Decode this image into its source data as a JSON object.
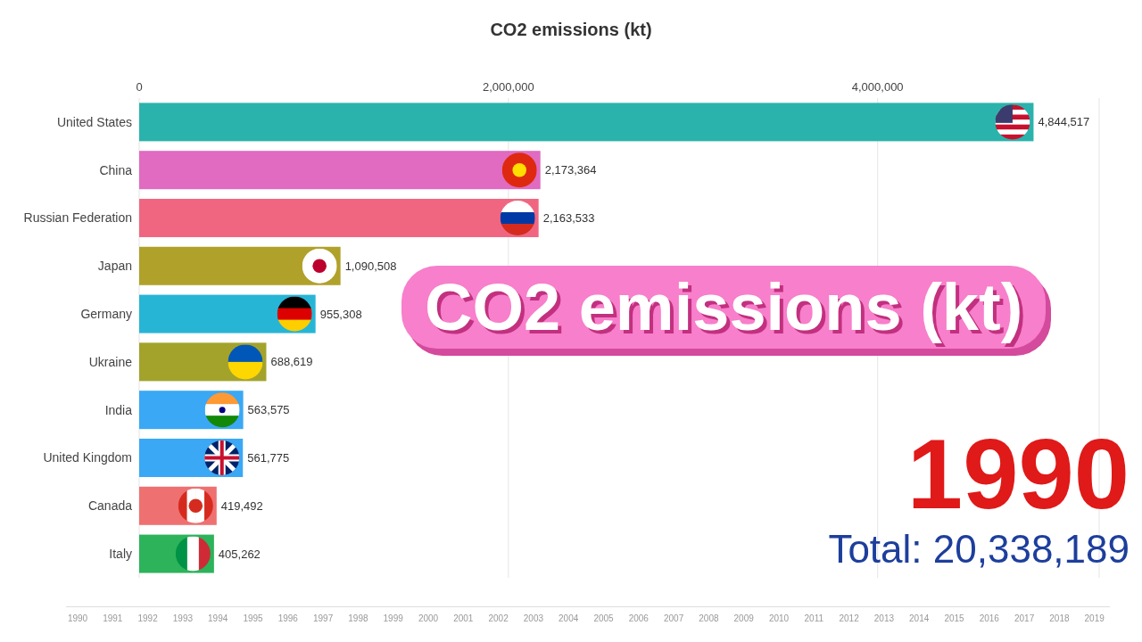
{
  "chart_data": {
    "type": "bar",
    "orientation": "horizontal",
    "title": "CO2 emissions (kt)",
    "categories": [
      "United States",
      "China",
      "Russian Federation",
      "Japan",
      "Germany",
      "Ukraine",
      "India",
      "United Kingdom",
      "Canada",
      "Italy"
    ],
    "values": [
      4844517,
      2173364,
      2163533,
      1090508,
      955308,
      688619,
      563575,
      561775,
      419492,
      405262
    ],
    "colors": [
      "#2ab3ac",
      "#e06bc0",
      "#f06680",
      "#b0a12a",
      "#27b5d6",
      "#a3a32c",
      "#3aa8f4",
      "#3aa8f4",
      "#ef7070",
      "#2db35a"
    ],
    "xlim": [
      0,
      5200000
    ],
    "xticks": [
      {
        "value": 0,
        "label": "0"
      },
      {
        "value": 2000000,
        "label": "2,000,000"
      },
      {
        "value": 4000000,
        "label": "4,000,000"
      }
    ],
    "value_labels": [
      "4,844,517",
      "2,173,364",
      "2,163,533",
      "1,090,508",
      "955,308",
      "688,619",
      "563,575",
      "561,775",
      "419,492",
      "405,262"
    ],
    "grid": "x",
    "annotations": [
      "CO2 emissions (kt)",
      "1990",
      "Total: 20,338,189",
      "1990",
      "1991",
      "1992",
      "1993",
      "1994",
      "1995",
      "1996",
      "1997",
      "1998",
      "1999",
      "2000",
      "2001",
      "2002",
      "2003",
      "2004",
      "2005",
      "2006",
      "2007",
      "2008",
      "2009",
      "2010",
      "2011",
      "2012",
      "2013",
      "2014",
      "2015",
      "2016",
      "2017",
      "2018",
      "2019"
    ]
  }
}
